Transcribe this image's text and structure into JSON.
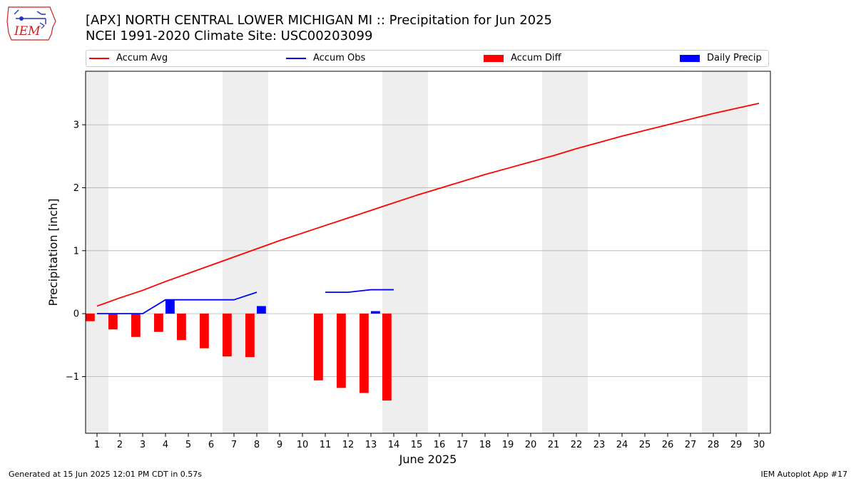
{
  "header": {
    "title_line1": "[APX] NORTH CENTRAL LOWER MICHIGAN  MI :: Precipitation for Jun 2025",
    "title_line2": "NCEI 1991-2020 Climate Site: USC00203099"
  },
  "logo": {
    "text": "IEM",
    "color": "#cc2222"
  },
  "footer": {
    "left": "Generated at 15 Jun 2025 12:01 PM CDT in 0.57s",
    "right": "IEM Autoplot App #17"
  },
  "colors": {
    "avg": "#ff0000",
    "obs": "#0000ff",
    "diff": "#ff0000",
    "daily": "#0000ff",
    "weekend": "#eeeeee",
    "grid": "#b0b0b0"
  },
  "chart_data": {
    "type": "bar",
    "xlabel": "June 2025",
    "ylabel": "Precipitation [inch]",
    "xlim": [
      0.5,
      30.5
    ],
    "ylim": [
      -1.9,
      3.85
    ],
    "yticks": [
      -1,
      0,
      1,
      2,
      3
    ],
    "ytick_labels": [
      "−1",
      "0",
      "1",
      "2",
      "3"
    ],
    "xticks": [
      1,
      2,
      3,
      4,
      5,
      6,
      7,
      8,
      9,
      10,
      11,
      12,
      13,
      14,
      15,
      16,
      17,
      18,
      19,
      20,
      21,
      22,
      23,
      24,
      25,
      26,
      27,
      28,
      29,
      30
    ],
    "grid": "horizontal",
    "legend": "top, above plot",
    "weekend_spans": [
      [
        0.5,
        1.5
      ],
      [
        6.5,
        8.5
      ],
      [
        13.5,
        15.5
      ],
      [
        20.5,
        22.5
      ],
      [
        27.5,
        29.5
      ]
    ],
    "series": [
      {
        "name": "Accum Avg",
        "type": "line",
        "x": [
          1,
          2,
          3,
          4,
          5,
          6,
          7,
          8,
          9,
          10,
          11,
          12,
          13,
          14,
          15,
          16,
          17,
          18,
          19,
          20,
          21,
          22,
          23,
          24,
          25,
          26,
          27,
          28,
          29,
          30
        ],
        "values": [
          0.12,
          0.25,
          0.37,
          0.51,
          0.64,
          0.77,
          0.9,
          1.03,
          1.16,
          1.28,
          1.4,
          1.52,
          1.64,
          1.76,
          1.88,
          1.99,
          2.1,
          2.21,
          2.31,
          2.41,
          2.51,
          2.62,
          2.72,
          2.82,
          2.91,
          3.0,
          3.09,
          3.18,
          3.26,
          3.34
        ]
      },
      {
        "name": "Accum Obs",
        "type": "line",
        "x": [
          1,
          2,
          3,
          4,
          5,
          6,
          7,
          8,
          9,
          10,
          11,
          12,
          13,
          14
        ],
        "values": [
          0.0,
          0.0,
          0.0,
          0.22,
          0.22,
          0.22,
          0.22,
          0.34,
          null,
          null,
          0.34,
          0.34,
          0.38,
          0.38
        ]
      },
      {
        "name": "Accum Diff",
        "type": "bar",
        "x": [
          1,
          2,
          3,
          4,
          5,
          6,
          7,
          8,
          11,
          12,
          13,
          14
        ],
        "values": [
          -0.12,
          -0.25,
          -0.37,
          -0.29,
          -0.42,
          -0.55,
          -0.68,
          -0.69,
          -1.06,
          -1.18,
          -1.26,
          -1.38
        ]
      },
      {
        "name": "Daily Precip",
        "type": "bar",
        "x": [
          4,
          8,
          13
        ],
        "values": [
          0.22,
          0.12,
          0.04
        ]
      }
    ]
  }
}
